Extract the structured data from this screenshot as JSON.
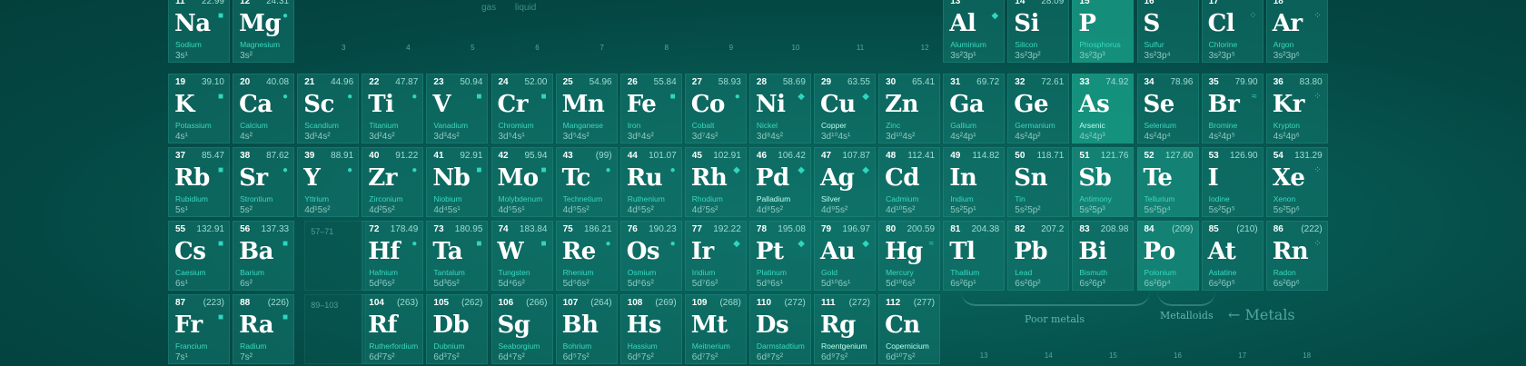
{
  "elements": [
    {
      "n": "11",
      "sym": "Na",
      "mass": "22.99",
      "name": "Sodium",
      "conf": "3s¹",
      "col": 0,
      "row": 0,
      "mark": "■"
    },
    {
      "n": "12",
      "sym": "Mg",
      "mass": "24.31",
      "name": "Magnesium",
      "conf": "3s²",
      "col": 1,
      "row": 0,
      "mark": "●"
    },
    {
      "n": "13",
      "sym": "Al",
      "mass": "",
      "name": "Aluminium",
      "conf": "3s²3p¹",
      "col": 12,
      "row": 0,
      "mark": "◆"
    },
    {
      "n": "14",
      "sym": "Si",
      "mass": "28.09",
      "name": "Silicon",
      "conf": "3s²3p²",
      "col": 13,
      "row": 0,
      "mark": ""
    },
    {
      "n": "15",
      "sym": "P",
      "mass": "",
      "name": "Phosphorus",
      "conf": "3s²3p³",
      "col": 14,
      "row": 0,
      "mark": "",
      "hl": true
    },
    {
      "n": "16",
      "sym": "S",
      "mass": "",
      "name": "Sulfur",
      "conf": "3s²3p⁴",
      "col": 15,
      "row": 0,
      "mark": ""
    },
    {
      "n": "17",
      "sym": "Cl",
      "mass": "",
      "name": "Chlorine",
      "conf": "3s²3p⁵",
      "col": 16,
      "row": 0,
      "mark": "⁘"
    },
    {
      "n": "18",
      "sym": "Ar",
      "mass": "",
      "name": "Argon",
      "conf": "3s²3p⁶",
      "col": 17,
      "row": 0,
      "mark": "⁘"
    },
    {
      "n": "19",
      "sym": "K",
      "mass": "39.10",
      "name": "Potassium",
      "conf": "4s¹",
      "col": 0,
      "row": 1,
      "mark": "■"
    },
    {
      "n": "20",
      "sym": "Ca",
      "mass": "40.08",
      "name": "Calcium",
      "conf": "4s²",
      "col": 1,
      "row": 1,
      "mark": "●"
    },
    {
      "n": "21",
      "sym": "Sc",
      "mass": "44.96",
      "name": "Scandium",
      "conf": "3d¹4s²",
      "col": 2,
      "row": 1,
      "mark": "●"
    },
    {
      "n": "22",
      "sym": "Ti",
      "mass": "47.87",
      "name": "Titanium",
      "conf": "3d²4s²",
      "col": 3,
      "row": 1,
      "mark": "●"
    },
    {
      "n": "23",
      "sym": "V",
      "mass": "50.94",
      "name": "Vanadium",
      "conf": "3d³4s²",
      "col": 4,
      "row": 1,
      "mark": "■"
    },
    {
      "n": "24",
      "sym": "Cr",
      "mass": "52.00",
      "name": "Chromium",
      "conf": "3d⁵4s¹",
      "col": 5,
      "row": 1,
      "mark": "■"
    },
    {
      "n": "25",
      "sym": "Mn",
      "mass": "54.96",
      "name": "Manganese",
      "conf": "3d⁵4s²",
      "col": 6,
      "row": 1,
      "mark": ""
    },
    {
      "n": "26",
      "sym": "Fe",
      "mass": "55.84",
      "name": "Iron",
      "conf": "3d⁶4s²",
      "col": 7,
      "row": 1,
      "mark": "■"
    },
    {
      "n": "27",
      "sym": "Co",
      "mass": "58.93",
      "name": "Cobalt",
      "conf": "3d⁷4s²",
      "col": 8,
      "row": 1,
      "mark": "●"
    },
    {
      "n": "28",
      "sym": "Ni",
      "mass": "58.69",
      "name": "Nickel",
      "conf": "3d⁸4s²",
      "col": 9,
      "row": 1,
      "mark": "◆"
    },
    {
      "n": "29",
      "sym": "Cu",
      "mass": "63.55",
      "name": "Copper",
      "conf": "3d¹⁰4s¹",
      "col": 10,
      "row": 1,
      "mark": "◆",
      "bright": true
    },
    {
      "n": "30",
      "sym": "Zn",
      "mass": "65.41",
      "name": "Zinc",
      "conf": "3d¹⁰4s²",
      "col": 11,
      "row": 1,
      "mark": ""
    },
    {
      "n": "31",
      "sym": "Ga",
      "mass": "69.72",
      "name": "Gallium",
      "conf": "4s²4p¹",
      "col": 12,
      "row": 1,
      "mark": ""
    },
    {
      "n": "32",
      "sym": "Ge",
      "mass": "72.61",
      "name": "Germanium",
      "conf": "4s²4p²",
      "col": 13,
      "row": 1,
      "mark": ""
    },
    {
      "n": "33",
      "sym": "As",
      "mass": "74.92",
      "name": "Arsenic",
      "conf": "4s²4p³",
      "col": 14,
      "row": 1,
      "mark": "",
      "hl": true,
      "bright": true
    },
    {
      "n": "34",
      "sym": "Se",
      "mass": "78.96",
      "name": "Selenium",
      "conf": "4s²4p⁴",
      "col": 15,
      "row": 1,
      "mark": ""
    },
    {
      "n": "35",
      "sym": "Br",
      "mass": "79.90",
      "name": "Bromine",
      "conf": "4s²4p⁵",
      "col": 16,
      "row": 1,
      "mark": "≈"
    },
    {
      "n": "36",
      "sym": "Kr",
      "mass": "83.80",
      "name": "Krypton",
      "conf": "4s²4p⁶",
      "col": 17,
      "row": 1,
      "mark": "⁘"
    },
    {
      "n": "37",
      "sym": "Rb",
      "mass": "85.47",
      "name": "Rubidium",
      "conf": "5s¹",
      "col": 0,
      "row": 2,
      "mark": "■"
    },
    {
      "n": "38",
      "sym": "Sr",
      "mass": "87.62",
      "name": "Strontium",
      "conf": "5s²",
      "col": 1,
      "row": 2,
      "mark": "●"
    },
    {
      "n": "39",
      "sym": "Y",
      "mass": "88.91",
      "name": "Yttrium",
      "conf": "4d¹5s²",
      "col": 2,
      "row": 2,
      "mark": "●"
    },
    {
      "n": "40",
      "sym": "Zr",
      "mass": "91.22",
      "name": "Zirconium",
      "conf": "4d²5s²",
      "col": 3,
      "row": 2,
      "mark": "●"
    },
    {
      "n": "41",
      "sym": "Nb",
      "mass": "92.91",
      "name": "Niobium",
      "conf": "4d⁴5s¹",
      "col": 4,
      "row": 2,
      "mark": "■"
    },
    {
      "n": "42",
      "sym": "Mo",
      "mass": "95.94",
      "name": "Molybdenum",
      "conf": "4d⁵5s¹",
      "col": 5,
      "row": 2,
      "mark": "■"
    },
    {
      "n": "43",
      "sym": "Tc",
      "mass": "(99)",
      "name": "Technetium",
      "conf": "4d⁵5s²",
      "col": 6,
      "row": 2,
      "mark": "●"
    },
    {
      "n": "44",
      "sym": "Ru",
      "mass": "101.07",
      "name": "Ruthenium",
      "conf": "4d⁶5s²",
      "col": 7,
      "row": 2,
      "mark": "●"
    },
    {
      "n": "45",
      "sym": "Rh",
      "mass": "102.91",
      "name": "Rhodium",
      "conf": "4d⁷5s²",
      "col": 8,
      "row": 2,
      "mark": "◆"
    },
    {
      "n": "46",
      "sym": "Pd",
      "mass": "106.42",
      "name": "Palladium",
      "conf": "4d⁸5s²",
      "col": 9,
      "row": 2,
      "mark": "◆",
      "bright": true
    },
    {
      "n": "47",
      "sym": "Ag",
      "mass": "107.87",
      "name": "Silver",
      "conf": "4d⁹5s²",
      "col": 10,
      "row": 2,
      "mark": "◆",
      "bright": true
    },
    {
      "n": "48",
      "sym": "Cd",
      "mass": "112.41",
      "name": "Cadmium",
      "conf": "4d¹⁰5s²",
      "col": 11,
      "row": 2,
      "mark": ""
    },
    {
      "n": "49",
      "sym": "In",
      "mass": "114.82",
      "name": "Indium",
      "conf": "5s²5p¹",
      "col": 12,
      "row": 2,
      "mark": ""
    },
    {
      "n": "50",
      "sym": "Sn",
      "mass": "118.71",
      "name": "Tin",
      "conf": "5s²5p²",
      "col": 13,
      "row": 2,
      "mark": ""
    },
    {
      "n": "51",
      "sym": "Sb",
      "mass": "121.76",
      "name": "Antimony",
      "conf": "5s²5p³",
      "col": 14,
      "row": 2,
      "mark": "",
      "hl2": true
    },
    {
      "n": "52",
      "sym": "Te",
      "mass": "127.60",
      "name": "Tellurium",
      "conf": "5s²5p⁴",
      "col": 15,
      "row": 2,
      "mark": "",
      "hl2": true
    },
    {
      "n": "53",
      "sym": "I",
      "mass": "126.90",
      "name": "Iodine",
      "conf": "5s²5p⁵",
      "col": 16,
      "row": 2,
      "mark": ""
    },
    {
      "n": "54",
      "sym": "Xe",
      "mass": "131.29",
      "name": "Xenon",
      "conf": "5s²5p⁶",
      "col": 17,
      "row": 2,
      "mark": "⁘"
    },
    {
      "n": "55",
      "sym": "Cs",
      "mass": "132.91",
      "name": "Caesium",
      "conf": "6s¹",
      "col": 0,
      "row": 3,
      "mark": "■"
    },
    {
      "n": "56",
      "sym": "Ba",
      "mass": "137.33",
      "name": "Barium",
      "conf": "6s²",
      "col": 1,
      "row": 3,
      "mark": "■"
    },
    {
      "n": "72",
      "sym": "Hf",
      "mass": "178.49",
      "name": "Hafnium",
      "conf": "5d²6s²",
      "col": 3,
      "row": 3,
      "mark": "●"
    },
    {
      "n": "73",
      "sym": "Ta",
      "mass": "180.95",
      "name": "Tantalum",
      "conf": "5d³6s²",
      "col": 4,
      "row": 3,
      "mark": "■"
    },
    {
      "n": "74",
      "sym": "W",
      "mass": "183.84",
      "name": "Tungsten",
      "conf": "5d⁴6s²",
      "col": 5,
      "row": 3,
      "mark": "■"
    },
    {
      "n": "75",
      "sym": "Re",
      "mass": "186.21",
      "name": "Rhenium",
      "conf": "5d⁵6s²",
      "col": 6,
      "row": 3,
      "mark": "●"
    },
    {
      "n": "76",
      "sym": "Os",
      "mass": "190.23",
      "name": "Osmium",
      "conf": "5d⁶6s²",
      "col": 7,
      "row": 3,
      "mark": "●"
    },
    {
      "n": "77",
      "sym": "Ir",
      "mass": "192.22",
      "name": "Iridium",
      "conf": "5d⁷6s²",
      "col": 8,
      "row": 3,
      "mark": "◆"
    },
    {
      "n": "78",
      "sym": "Pt",
      "mass": "195.08",
      "name": "Platinum",
      "conf": "5d⁹6s¹",
      "col": 9,
      "row": 3,
      "mark": "◆"
    },
    {
      "n": "79",
      "sym": "Au",
      "mass": "196.97",
      "name": "Gold",
      "conf": "5d¹⁰6s¹",
      "col": 10,
      "row": 3,
      "mark": "◆"
    },
    {
      "n": "80",
      "sym": "Hg",
      "mass": "200.59",
      "name": "Mercury",
      "conf": "5d¹⁰6s²",
      "col": 11,
      "row": 3,
      "mark": "≈"
    },
    {
      "n": "81",
      "sym": "Tl",
      "mass": "204.38",
      "name": "Thallium",
      "conf": "6s²6p¹",
      "col": 12,
      "row": 3,
      "mark": ""
    },
    {
      "n": "82",
      "sym": "Pb",
      "mass": "207.2",
      "name": "Lead",
      "conf": "6s²6p²",
      "col": 13,
      "row": 3,
      "mark": ""
    },
    {
      "n": "83",
      "sym": "Bi",
      "mass": "208.98",
      "name": "Bismuth",
      "conf": "6s²6p³",
      "col": 14,
      "row": 3,
      "mark": ""
    },
    {
      "n": "84",
      "sym": "Po",
      "mass": "(209)",
      "name": "Polonium",
      "conf": "6s²6p⁴",
      "col": 15,
      "row": 3,
      "mark": "",
      "hl2": true
    },
    {
      "n": "85",
      "sym": "At",
      "mass": "(210)",
      "name": "Astatine",
      "conf": "6s²6p⁵",
      "col": 16,
      "row": 3,
      "mark": ""
    },
    {
      "n": "86",
      "sym": "Rn",
      "mass": "(222)",
      "name": "Radon",
      "conf": "6s²6p⁶",
      "col": 17,
      "row": 3,
      "mark": "⁘"
    },
    {
      "n": "87",
      "sym": "Fr",
      "mass": "(223)",
      "name": "Francium",
      "conf": "7s¹",
      "col": 0,
      "row": 4,
      "mark": "■"
    },
    {
      "n": "88",
      "sym": "Ra",
      "mass": "(226)",
      "name": "Radium",
      "conf": "7s²",
      "col": 1,
      "row": 4,
      "mark": "■"
    },
    {
      "n": "104",
      "sym": "Rf",
      "mass": "(263)",
      "name": "Rutherfordium",
      "conf": "6d²7s²",
      "col": 3,
      "row": 4,
      "mark": ""
    },
    {
      "n": "105",
      "sym": "Db",
      "mass": "(262)",
      "name": "Dubnium",
      "conf": "6d³7s²",
      "col": 4,
      "row": 4,
      "mark": ""
    },
    {
      "n": "106",
      "sym": "Sg",
      "mass": "(266)",
      "name": "Seaborgium",
      "conf": "6d⁴7s²",
      "col": 5,
      "row": 4,
      "mark": ""
    },
    {
      "n": "107",
      "sym": "Bh",
      "mass": "(264)",
      "name": "Bohrium",
      "conf": "6d⁵7s²",
      "col": 6,
      "row": 4,
      "mark": ""
    },
    {
      "n": "108",
      "sym": "Hs",
      "mass": "(269)",
      "name": "Hassium",
      "conf": "6d⁶7s²",
      "col": 7,
      "row": 4,
      "mark": ""
    },
    {
      "n": "109",
      "sym": "Mt",
      "mass": "(268)",
      "name": "Meitnerium",
      "conf": "6d⁷7s²",
      "col": 8,
      "row": 4,
      "mark": ""
    },
    {
      "n": "110",
      "sym": "Ds",
      "mass": "(272)",
      "name": "Darmstadtium",
      "conf": "6d⁸7s²",
      "col": 9,
      "row": 4,
      "mark": ""
    },
    {
      "n": "111",
      "sym": "Rg",
      "mass": "(272)",
      "name": "Roentgenium",
      "conf": "6d⁹7s²",
      "col": 10,
      "row": 4,
      "mark": "",
      "bright": true
    },
    {
      "n": "112",
      "sym": "Cn",
      "mass": "(277)",
      "name": "Copernicium",
      "conf": "6d¹⁰7s²",
      "col": 11,
      "row": 4,
      "mark": "",
      "bright": true
    }
  ],
  "placeholders": [
    {
      "label": "57–71",
      "col": 2,
      "row": 3
    },
    {
      "label": "89–103",
      "col": 2,
      "row": 4
    }
  ],
  "group_numbers_mid": [
    "3",
    "4",
    "5",
    "6",
    "7",
    "8",
    "9",
    "10",
    "11",
    "12"
  ],
  "group_numbers_bottom": [
    "13",
    "14",
    "15",
    "16",
    "17",
    "18"
  ],
  "top_legend": [
    "gas",
    "liquid"
  ],
  "labels": {
    "poor_metals": "Poor metals",
    "metalloids": "Metalloids",
    "metals": "← Metals"
  }
}
